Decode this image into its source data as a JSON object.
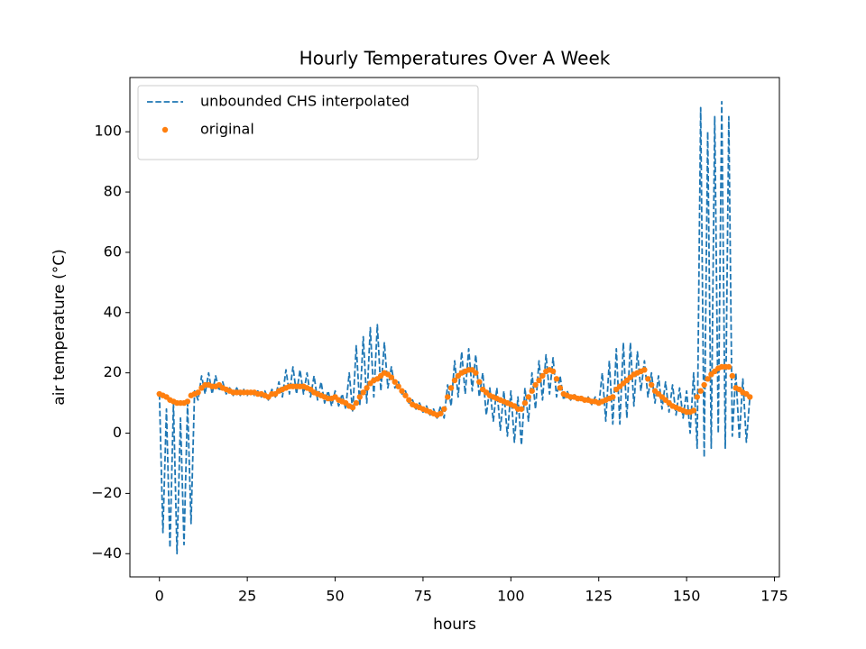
{
  "chart_data": {
    "type": "line",
    "title": "Hourly Temperatures Over A Week",
    "x_label": "hours",
    "y_label": "air temperature (°C)",
    "x": [
      0,
      1,
      2,
      3,
      4,
      5,
      6,
      7,
      8,
      9,
      10,
      11,
      12,
      13,
      14,
      15,
      16,
      17,
      18,
      19,
      20,
      21,
      22,
      23,
      24,
      25,
      26,
      27,
      28,
      29,
      30,
      31,
      32,
      33,
      34,
      35,
      36,
      37,
      38,
      39,
      40,
      41,
      42,
      43,
      44,
      45,
      46,
      47,
      48,
      49,
      50,
      51,
      52,
      53,
      54,
      55,
      56,
      57,
      58,
      59,
      60,
      61,
      62,
      63,
      64,
      65,
      66,
      67,
      68,
      69,
      70,
      71,
      72,
      73,
      74,
      75,
      76,
      77,
      78,
      79,
      80,
      81,
      82,
      83,
      84,
      85,
      86,
      87,
      88,
      89,
      90,
      91,
      92,
      93,
      94,
      95,
      96,
      97,
      98,
      99,
      100,
      101,
      102,
      103,
      104,
      105,
      106,
      107,
      108,
      109,
      110,
      111,
      112,
      113,
      114,
      115,
      116,
      117,
      118,
      119,
      120,
      121,
      122,
      123,
      124,
      125,
      126,
      127,
      128,
      129,
      130,
      131,
      132,
      133,
      134,
      135,
      136,
      137,
      138,
      139,
      140,
      141,
      142,
      143,
      144,
      145,
      146,
      147,
      148,
      149,
      150,
      151,
      152,
      153,
      154,
      155,
      156,
      157,
      158,
      159,
      160,
      161,
      162,
      163,
      164,
      165,
      166,
      167,
      168
    ],
    "series": [
      {
        "name": "unbounded CHS interpolated",
        "color": "#1f77b4",
        "style": "dashed",
        "values": [
          13,
          -33,
          8,
          -38,
          10,
          -40,
          5,
          -37,
          10,
          -30,
          14,
          11,
          19,
          13,
          20,
          13,
          19,
          14,
          17,
          13,
          15,
          12.5,
          15,
          12.5,
          14.5,
          12.5,
          14.5,
          12.5,
          14,
          12,
          14,
          11,
          14.5,
          12,
          17,
          12,
          21,
          13,
          22,
          13,
          21,
          13,
          20,
          12,
          19,
          11,
          17,
          10,
          14,
          9,
          14,
          9,
          13,
          8,
          20,
          7,
          29,
          9,
          32,
          10,
          35,
          12,
          36,
          14,
          30,
          15,
          22,
          15,
          17,
          13,
          14,
          10,
          11,
          8,
          10,
          7,
          9,
          6,
          8,
          5,
          9,
          5,
          16,
          9,
          24,
          12,
          27,
          13,
          28,
          14,
          26,
          12,
          20,
          6,
          15,
          4,
          15,
          1,
          14,
          -1,
          14,
          -3,
          12,
          -4,
          15,
          4,
          20,
          8,
          24,
          11,
          26,
          13,
          25,
          12,
          19,
          11,
          14,
          11,
          13,
          10.5,
          12.5,
          10,
          12,
          9.5,
          12,
          9,
          20,
          4,
          24,
          3,
          28,
          3,
          30,
          5,
          30,
          9,
          27,
          14,
          24,
          12,
          20,
          10,
          19,
          8,
          17,
          7,
          16,
          6,
          15,
          5,
          14,
          0,
          20,
          -5,
          108,
          -8,
          100,
          -5,
          105,
          0,
          110,
          -5,
          105,
          -1,
          20,
          -2,
          18,
          -3,
          12
        ]
      },
      {
        "name": "original",
        "color": "#ff7f0e",
        "style": "dots",
        "values": [
          13,
          12.5,
          12,
          11,
          10.5,
          10,
          10,
          10,
          10.5,
          12.5,
          13,
          13.5,
          15,
          16,
          16,
          15.5,
          15.5,
          16,
          15,
          14.5,
          14,
          13.5,
          13.5,
          13.5,
          13.5,
          13.5,
          13.5,
          13.5,
          13,
          13,
          12.5,
          12,
          13,
          13,
          14,
          14.5,
          15,
          15.5,
          15.5,
          15.5,
          15.5,
          15.5,
          15,
          14.5,
          13.5,
          13,
          12.5,
          12,
          11.5,
          11.5,
          12,
          11,
          10.5,
          10,
          9,
          8.5,
          10,
          12,
          13.5,
          15,
          16.5,
          17.5,
          18,
          19,
          20,
          19.5,
          18.5,
          17,
          15.5,
          14,
          12.5,
          11,
          9.5,
          9,
          8.5,
          8,
          7.5,
          7,
          6.5,
          6,
          6.5,
          8,
          12,
          15,
          17.5,
          19,
          20,
          20.5,
          21,
          21,
          20,
          17,
          14.5,
          13.5,
          12.5,
          12,
          11.5,
          11,
          10.5,
          10,
          9.5,
          9,
          8,
          8,
          10,
          12,
          14,
          16,
          17.5,
          19,
          20.5,
          21,
          20.5,
          18,
          15,
          13,
          12.5,
          12,
          12,
          11.5,
          11.5,
          11,
          11,
          10.5,
          10.5,
          10,
          10.5,
          11,
          11.5,
          12,
          14.5,
          15.5,
          16.5,
          17.5,
          18.5,
          19.5,
          20,
          20.5,
          21,
          18,
          16,
          14,
          13,
          12,
          11,
          10,
          9,
          8.5,
          8,
          7.5,
          7,
          7,
          7.5,
          12,
          14,
          16,
          18,
          19.5,
          20.5,
          21.5,
          22,
          22,
          22,
          19,
          15,
          14.5,
          13.5,
          13,
          12
        ]
      }
    ],
    "xlim": [
      -8.4,
      176.4
    ],
    "ylim": [
      -47.7,
      118.0
    ],
    "xticks": [
      0,
      25,
      50,
      75,
      100,
      125,
      150,
      175
    ],
    "yticks": [
      {
        "value": -40,
        "label": "−40"
      },
      {
        "value": -20,
        "label": "−20"
      },
      0,
      20,
      40,
      60,
      80,
      100
    ],
    "legend": "upper left"
  }
}
